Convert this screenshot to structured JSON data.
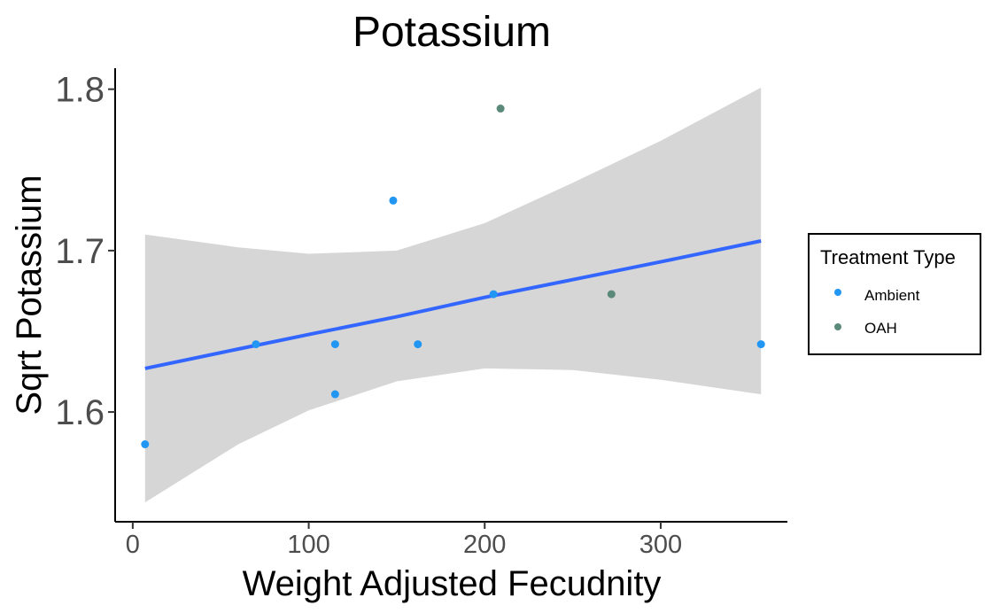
{
  "chart_data": {
    "type": "scatter",
    "title": "Potassium",
    "xlabel": "Weight Adjusted Fecudnity",
    "ylabel": "Sqrt Potassium",
    "xlim": [
      -10,
      372
    ],
    "ylim": [
      1.532,
      1.813
    ],
    "x_ticks": [
      0,
      100,
      200,
      300
    ],
    "y_ticks": [
      1.6,
      1.7,
      1.8
    ],
    "y_tick_labels": [
      "1.6",
      "1.7",
      "1.8"
    ],
    "x_tick_labels": [
      "0",
      "100",
      "200",
      "300"
    ],
    "grid": false,
    "legend": {
      "title": "Treatment Type",
      "placement": "right"
    },
    "series": [
      {
        "name": "Ambient",
        "color": "#2196f3",
        "points": [
          {
            "x": 7,
            "y": 1.58
          },
          {
            "x": 70,
            "y": 1.642
          },
          {
            "x": 115,
            "y": 1.642
          },
          {
            "x": 115,
            "y": 1.611
          },
          {
            "x": 148,
            "y": 1.731
          },
          {
            "x": 162,
            "y": 1.642
          },
          {
            "x": 205,
            "y": 1.673
          },
          {
            "x": 357,
            "y": 1.642
          }
        ]
      },
      {
        "name": "OAH",
        "color": "#5b8a7a",
        "points": [
          {
            "x": 209,
            "y": 1.788
          },
          {
            "x": 272,
            "y": 1.673
          }
        ]
      }
    ],
    "trend": {
      "method": "linear regression",
      "color": "#3366ff",
      "ribbon_color": "#d6d6d6",
      "points": [
        {
          "x": 7,
          "y": 1.627,
          "lo": 1.544,
          "hi": 1.71
        },
        {
          "x": 60,
          "y": 1.639,
          "lo": 1.58,
          "hi": 1.702
        },
        {
          "x": 100,
          "y": 1.648,
          "lo": 1.601,
          "hi": 1.698
        },
        {
          "x": 150,
          "y": 1.659,
          "lo": 1.619,
          "hi": 1.7
        },
        {
          "x": 200,
          "y": 1.671,
          "lo": 1.627,
          "hi": 1.717
        },
        {
          "x": 250,
          "y": 1.682,
          "lo": 1.626,
          "hi": 1.742
        },
        {
          "x": 300,
          "y": 1.693,
          "lo": 1.62,
          "hi": 1.768
        },
        {
          "x": 357,
          "y": 1.706,
          "lo": 1.611,
          "hi": 1.801
        }
      ]
    }
  }
}
